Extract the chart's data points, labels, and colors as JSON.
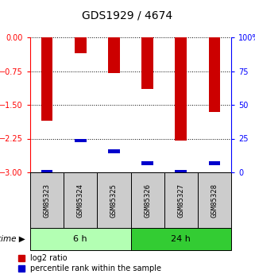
{
  "title": "GDS1929 / 4674",
  "samples": [
    "GSM85323",
    "GSM85324",
    "GSM85325",
    "GSM85326",
    "GSM85327",
    "GSM85328"
  ],
  "log2_values": [
    -1.85,
    -0.35,
    -0.8,
    -1.15,
    -2.3,
    -1.65
  ],
  "percentile_values": [
    2.0,
    25.0,
    17.0,
    8.0,
    2.0,
    8.0
  ],
  "time_groups": [
    {
      "label": "6 h",
      "indices": [
        0,
        1,
        2
      ],
      "color": "#b3ffb3"
    },
    {
      "label": "24 h",
      "indices": [
        3,
        4,
        5
      ],
      "color": "#33cc33"
    }
  ],
  "ylim_left": [
    -3,
    0
  ],
  "ylim_right": [
    0,
    100
  ],
  "yticks_left": [
    0,
    -0.75,
    -1.5,
    -2.25,
    -3
  ],
  "yticks_right": [
    0,
    25,
    50,
    75,
    100
  ],
  "bar_color_red": "#cc0000",
  "bar_color_blue": "#0000cc",
  "bar_width": 0.35,
  "bg_color": "#ffffff",
  "plot_bg": "#ffffff",
  "label_bg": "#cccccc",
  "legend_red_label": "log2 ratio",
  "legend_blue_label": "percentile rank within the sample",
  "title_fontsize": 10,
  "tick_fontsize": 7,
  "sample_label_fontsize": 6.5,
  "legend_fontsize": 7,
  "time_fontsize": 8
}
